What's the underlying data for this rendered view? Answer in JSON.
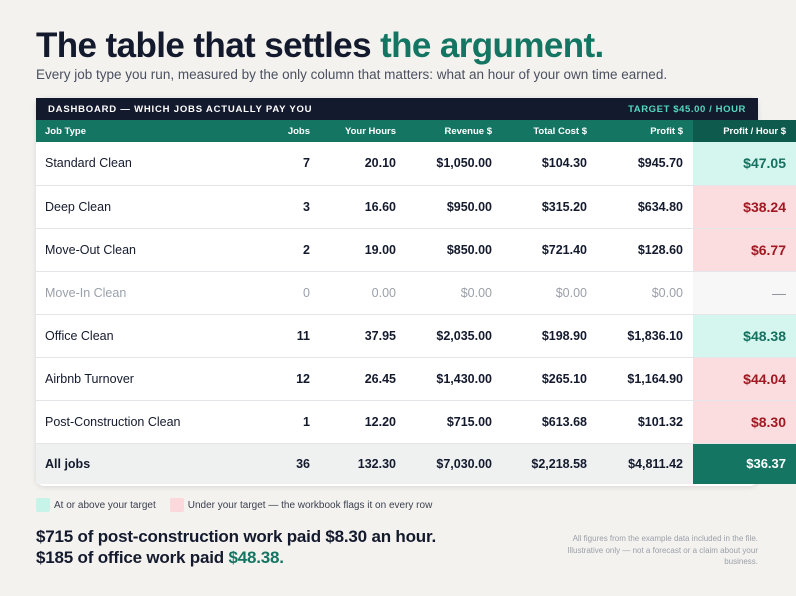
{
  "headline": {
    "main": "The table that settles ",
    "accent": "the argument."
  },
  "subhead": "Every job type you run, measured by the only column that matters: what an hour of your own time earned.",
  "dashboard": {
    "title": "DASHBOARD — WHICH JOBS ACTUALLY PAY YOU",
    "target": "TARGET $45.00 / HOUR",
    "columns": [
      "Job Type",
      "Jobs",
      "Your Hours",
      "Revenue $",
      "Total Cost $",
      "Profit $",
      "Profit / Hour $"
    ],
    "rows": [
      {
        "type": "Standard Clean",
        "jobs": "7",
        "hours": "20.10",
        "revenue": "$1,050.00",
        "cost": "$104.30",
        "profit": "$945.70",
        "pph": "$47.05",
        "status": "good"
      },
      {
        "type": "Deep Clean",
        "jobs": "3",
        "hours": "16.60",
        "revenue": "$950.00",
        "cost": "$315.20",
        "profit": "$634.80",
        "pph": "$38.24",
        "status": "bad"
      },
      {
        "type": "Move-Out Clean",
        "jobs": "2",
        "hours": "19.00",
        "revenue": "$850.00",
        "cost": "$721.40",
        "profit": "$128.60",
        "pph": "$6.77",
        "status": "bad"
      },
      {
        "type": "Move-In Clean",
        "jobs": "0",
        "hours": "0.00",
        "revenue": "$0.00",
        "cost": "$0.00",
        "profit": "$0.00",
        "pph": "—",
        "status": "none"
      },
      {
        "type": "Office Clean",
        "jobs": "11",
        "hours": "37.95",
        "revenue": "$2,035.00",
        "cost": "$198.90",
        "profit": "$1,836.10",
        "pph": "$48.38",
        "status": "good"
      },
      {
        "type": "Airbnb Turnover",
        "jobs": "12",
        "hours": "26.45",
        "revenue": "$1,430.00",
        "cost": "$265.10",
        "profit": "$1,164.90",
        "pph": "$44.04",
        "status": "bad"
      },
      {
        "type": "Post-Construction Clean",
        "jobs": "1",
        "hours": "12.20",
        "revenue": "$715.00",
        "cost": "$613.68",
        "profit": "$101.32",
        "pph": "$8.30",
        "status": "bad"
      }
    ],
    "total": {
      "type": "All jobs",
      "jobs": "36",
      "hours": "132.30",
      "revenue": "$7,030.00",
      "cost": "$2,218.58",
      "profit": "$4,811.42",
      "pph": "$36.37"
    }
  },
  "legend": {
    "good": "At or above your target",
    "bad": "Under your target — the workbook flags it on every row"
  },
  "bottom": {
    "line1": "$715 of post-construction work paid $8.30 an hour.",
    "line2_prefix": "$185 of office work paid ",
    "line2_accent": "$48.38."
  },
  "footnote": "All figures from the example data included in the file. Illustrative only — not a forecast or a claim about your business.",
  "colors": {
    "accent": "#147563",
    "good_bg": "#d5f6ee",
    "bad_bg": "#fbdde0",
    "bad_text": "#a01922",
    "dark": "#141a2e"
  }
}
